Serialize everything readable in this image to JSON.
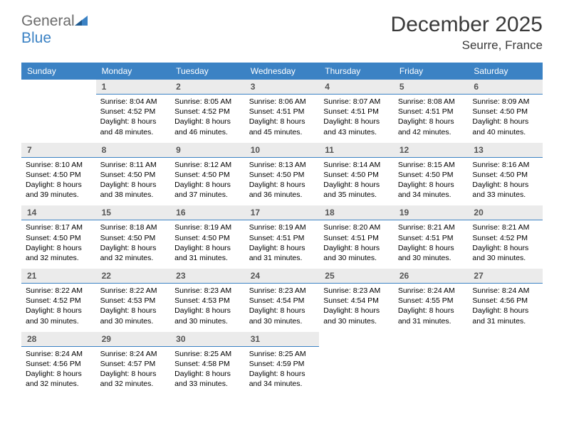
{
  "logo": {
    "word1": "General",
    "word2": "Blue"
  },
  "title": "December 2025",
  "location": "Seurre, France",
  "colors": {
    "header_bg": "#3b82c4",
    "header_text": "#ffffff",
    "daynum_bg": "#ebebeb",
    "daynum_text": "#555555",
    "divider": "#3b82c4",
    "body_text": "#000000",
    "logo_gray": "#6b6b6b",
    "logo_blue": "#3b82c4"
  },
  "day_names": [
    "Sunday",
    "Monday",
    "Tuesday",
    "Wednesday",
    "Thursday",
    "Friday",
    "Saturday"
  ],
  "weeks": [
    [
      {
        "n": "",
        "sr": "",
        "ss": "",
        "dl": ""
      },
      {
        "n": "1",
        "sr": "Sunrise: 8:04 AM",
        "ss": "Sunset: 4:52 PM",
        "dl": "Daylight: 8 hours and 48 minutes."
      },
      {
        "n": "2",
        "sr": "Sunrise: 8:05 AM",
        "ss": "Sunset: 4:52 PM",
        "dl": "Daylight: 8 hours and 46 minutes."
      },
      {
        "n": "3",
        "sr": "Sunrise: 8:06 AM",
        "ss": "Sunset: 4:51 PM",
        "dl": "Daylight: 8 hours and 45 minutes."
      },
      {
        "n": "4",
        "sr": "Sunrise: 8:07 AM",
        "ss": "Sunset: 4:51 PM",
        "dl": "Daylight: 8 hours and 43 minutes."
      },
      {
        "n": "5",
        "sr": "Sunrise: 8:08 AM",
        "ss": "Sunset: 4:51 PM",
        "dl": "Daylight: 8 hours and 42 minutes."
      },
      {
        "n": "6",
        "sr": "Sunrise: 8:09 AM",
        "ss": "Sunset: 4:50 PM",
        "dl": "Daylight: 8 hours and 40 minutes."
      }
    ],
    [
      {
        "n": "7",
        "sr": "Sunrise: 8:10 AM",
        "ss": "Sunset: 4:50 PM",
        "dl": "Daylight: 8 hours and 39 minutes."
      },
      {
        "n": "8",
        "sr": "Sunrise: 8:11 AM",
        "ss": "Sunset: 4:50 PM",
        "dl": "Daylight: 8 hours and 38 minutes."
      },
      {
        "n": "9",
        "sr": "Sunrise: 8:12 AM",
        "ss": "Sunset: 4:50 PM",
        "dl": "Daylight: 8 hours and 37 minutes."
      },
      {
        "n": "10",
        "sr": "Sunrise: 8:13 AM",
        "ss": "Sunset: 4:50 PM",
        "dl": "Daylight: 8 hours and 36 minutes."
      },
      {
        "n": "11",
        "sr": "Sunrise: 8:14 AM",
        "ss": "Sunset: 4:50 PM",
        "dl": "Daylight: 8 hours and 35 minutes."
      },
      {
        "n": "12",
        "sr": "Sunrise: 8:15 AM",
        "ss": "Sunset: 4:50 PM",
        "dl": "Daylight: 8 hours and 34 minutes."
      },
      {
        "n": "13",
        "sr": "Sunrise: 8:16 AM",
        "ss": "Sunset: 4:50 PM",
        "dl": "Daylight: 8 hours and 33 minutes."
      }
    ],
    [
      {
        "n": "14",
        "sr": "Sunrise: 8:17 AM",
        "ss": "Sunset: 4:50 PM",
        "dl": "Daylight: 8 hours and 32 minutes."
      },
      {
        "n": "15",
        "sr": "Sunrise: 8:18 AM",
        "ss": "Sunset: 4:50 PM",
        "dl": "Daylight: 8 hours and 32 minutes."
      },
      {
        "n": "16",
        "sr": "Sunrise: 8:19 AM",
        "ss": "Sunset: 4:50 PM",
        "dl": "Daylight: 8 hours and 31 minutes."
      },
      {
        "n": "17",
        "sr": "Sunrise: 8:19 AM",
        "ss": "Sunset: 4:51 PM",
        "dl": "Daylight: 8 hours and 31 minutes."
      },
      {
        "n": "18",
        "sr": "Sunrise: 8:20 AM",
        "ss": "Sunset: 4:51 PM",
        "dl": "Daylight: 8 hours and 30 minutes."
      },
      {
        "n": "19",
        "sr": "Sunrise: 8:21 AM",
        "ss": "Sunset: 4:51 PM",
        "dl": "Daylight: 8 hours and 30 minutes."
      },
      {
        "n": "20",
        "sr": "Sunrise: 8:21 AM",
        "ss": "Sunset: 4:52 PM",
        "dl": "Daylight: 8 hours and 30 minutes."
      }
    ],
    [
      {
        "n": "21",
        "sr": "Sunrise: 8:22 AM",
        "ss": "Sunset: 4:52 PM",
        "dl": "Daylight: 8 hours and 30 minutes."
      },
      {
        "n": "22",
        "sr": "Sunrise: 8:22 AM",
        "ss": "Sunset: 4:53 PM",
        "dl": "Daylight: 8 hours and 30 minutes."
      },
      {
        "n": "23",
        "sr": "Sunrise: 8:23 AM",
        "ss": "Sunset: 4:53 PM",
        "dl": "Daylight: 8 hours and 30 minutes."
      },
      {
        "n": "24",
        "sr": "Sunrise: 8:23 AM",
        "ss": "Sunset: 4:54 PM",
        "dl": "Daylight: 8 hours and 30 minutes."
      },
      {
        "n": "25",
        "sr": "Sunrise: 8:23 AM",
        "ss": "Sunset: 4:54 PM",
        "dl": "Daylight: 8 hours and 30 minutes."
      },
      {
        "n": "26",
        "sr": "Sunrise: 8:24 AM",
        "ss": "Sunset: 4:55 PM",
        "dl": "Daylight: 8 hours and 31 minutes."
      },
      {
        "n": "27",
        "sr": "Sunrise: 8:24 AM",
        "ss": "Sunset: 4:56 PM",
        "dl": "Daylight: 8 hours and 31 minutes."
      }
    ],
    [
      {
        "n": "28",
        "sr": "Sunrise: 8:24 AM",
        "ss": "Sunset: 4:56 PM",
        "dl": "Daylight: 8 hours and 32 minutes."
      },
      {
        "n": "29",
        "sr": "Sunrise: 8:24 AM",
        "ss": "Sunset: 4:57 PM",
        "dl": "Daylight: 8 hours and 32 minutes."
      },
      {
        "n": "30",
        "sr": "Sunrise: 8:25 AM",
        "ss": "Sunset: 4:58 PM",
        "dl": "Daylight: 8 hours and 33 minutes."
      },
      {
        "n": "31",
        "sr": "Sunrise: 8:25 AM",
        "ss": "Sunset: 4:59 PM",
        "dl": "Daylight: 8 hours and 34 minutes."
      },
      {
        "n": "",
        "sr": "",
        "ss": "",
        "dl": ""
      },
      {
        "n": "",
        "sr": "",
        "ss": "",
        "dl": ""
      },
      {
        "n": "",
        "sr": "",
        "ss": "",
        "dl": ""
      }
    ]
  ]
}
